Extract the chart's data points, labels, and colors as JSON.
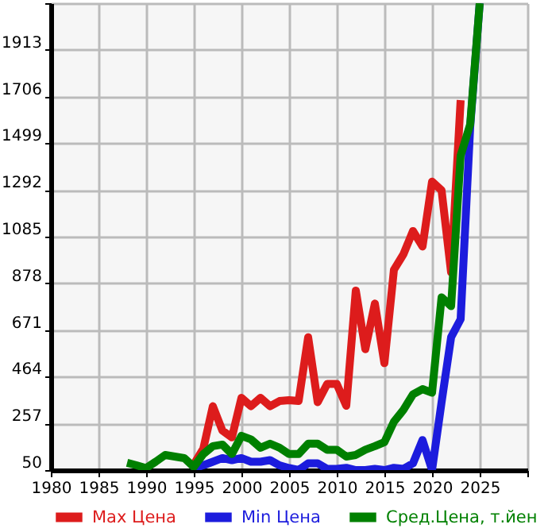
{
  "chart_data": {
    "type": "line",
    "xlim": [
      1980,
      2030
    ],
    "xticks": [
      1980,
      1985,
      1990,
      1995,
      2000,
      2005,
      2010,
      2015,
      2020,
      2025,
      {
        "value": 2030,
        "label": null
      }
    ],
    "ylim": [
      50,
      2120
    ],
    "yticks": [
      50,
      257,
      464,
      671,
      878,
      1085,
      1292,
      1499,
      1706,
      1913,
      {
        "value": 2120,
        "label": null
      }
    ],
    "grid": true,
    "legend": "bottom",
    "marker": "none",
    "line_style": "solid",
    "series": [
      {
        "name": "Max Цена",
        "color": "#dd1c1c",
        "x": [
          1995,
          1996,
          1997,
          1998,
          1999,
          2000,
          2001,
          2002,
          2003,
          2004,
          2005,
          2006,
          2007,
          2008,
          2009,
          2010,
          2011,
          2012,
          2013,
          2014,
          2015,
          2016,
          2017,
          2018,
          2019,
          2020,
          2021,
          2022,
          2023
        ],
        "values": [
          75,
          145,
          333,
          225,
          195,
          370,
          333,
          370,
          333,
          356,
          360,
          356,
          639,
          351,
          432,
          432,
          335,
          846,
          586,
          788,
          524,
          938,
          1007,
          1110,
          1041,
          1329,
          1290,
          926,
          1690
        ]
      },
      {
        "name": "Min Цена",
        "color": "#1c1cdd",
        "x": [
          1995,
          1996,
          1997,
          1998,
          1999,
          2000,
          2001,
          2002,
          2003,
          2004,
          2005,
          2006,
          2007,
          2008,
          2009,
          2010,
          2011,
          2012,
          2013,
          2014,
          2015,
          2016,
          2017,
          2018,
          2019,
          2020,
          2021,
          2022,
          2023,
          2024,
          2025
        ],
        "values": [
          59,
          71,
          87,
          103,
          94,
          103,
          87,
          87,
          94,
          71,
          59,
          50,
          80,
          80,
          55,
          55,
          60,
          50,
          50,
          55,
          50,
          60,
          55,
          80,
          183,
          50,
          351,
          639,
          719,
          1570,
          2120
        ]
      },
      {
        "name": "Сред.Цена, т.йен",
        "color": "#008000",
        "x": [
          1988,
          1989,
          1990,
          1991,
          1992,
          1993,
          1994,
          1995,
          1996,
          1997,
          1998,
          1999,
          2000,
          2001,
          2002,
          2003,
          2004,
          2005,
          2006,
          2007,
          2008,
          2009,
          2010,
          2011,
          2012,
          2013,
          2014,
          2015,
          2016,
          2017,
          2018,
          2019,
          2020,
          2021,
          2022,
          2023,
          2024,
          2025
        ],
        "values": [
          82,
          71,
          59,
          87,
          117,
          110,
          103,
          64,
          121,
          156,
          163,
          121,
          202,
          186,
          149,
          167,
          149,
          121,
          121,
          167,
          167,
          140,
          140,
          110,
          117,
          140,
          156,
          174,
          264,
          317,
          386,
          409,
          393,
          816,
          777,
          1444,
          1582,
          2120
        ]
      }
    ]
  }
}
